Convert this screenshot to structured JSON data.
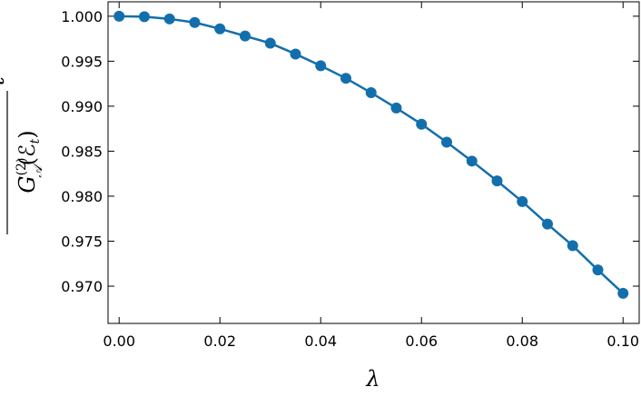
{
  "chart_data": {
    "type": "line",
    "x_label": "λ",
    "y_label": {
      "base": "G",
      "sub": "𝒜",
      "sup": "(2)",
      "arg": "(ℰ",
      "argsub": "t",
      "close": ")",
      "over": "t"
    },
    "x": [
      0,
      0.005,
      0.01,
      0.015,
      0.02,
      0.025,
      0.03,
      0.035,
      0.04,
      0.045,
      0.05,
      0.055,
      0.06,
      0.065,
      0.07,
      0.075,
      0.08,
      0.085,
      0.09,
      0.095,
      0.1
    ],
    "series": [
      {
        "color": "#136fac",
        "values": [
          1.0,
          0.99995,
          0.9997,
          0.9993,
          0.9986,
          0.9978,
          0.997,
          0.9958,
          0.9945,
          0.9931,
          0.9915,
          0.9898,
          0.988,
          0.986,
          0.9839,
          0.9817,
          0.9794,
          0.9769,
          0.9745,
          0.9718,
          0.9692
        ]
      }
    ],
    "xlim": [
      -0.0022,
      0.1032
    ],
    "ylim": [
      0.96586,
      1.0016
    ],
    "xticks": [
      {
        "value": 0,
        "label": "0.00"
      },
      {
        "value": 0.02,
        "label": "0.02"
      },
      {
        "value": 0.04,
        "label": "0.04"
      },
      {
        "value": 0.06,
        "label": "0.06"
      },
      {
        "value": 0.08,
        "label": "0.08"
      },
      {
        "value": 0.1,
        "label": "0.10"
      }
    ],
    "yticks": [
      {
        "value": 0.97,
        "label": "0.970"
      },
      {
        "value": 0.975,
        "label": "0.975"
      },
      {
        "value": 0.98,
        "label": "0.980"
      },
      {
        "value": 0.985,
        "label": "0.985"
      },
      {
        "value": 0.99,
        "label": "0.990"
      },
      {
        "value": 0.995,
        "label": "0.995"
      },
      {
        "value": 1.0,
        "label": "1.000"
      }
    ]
  }
}
